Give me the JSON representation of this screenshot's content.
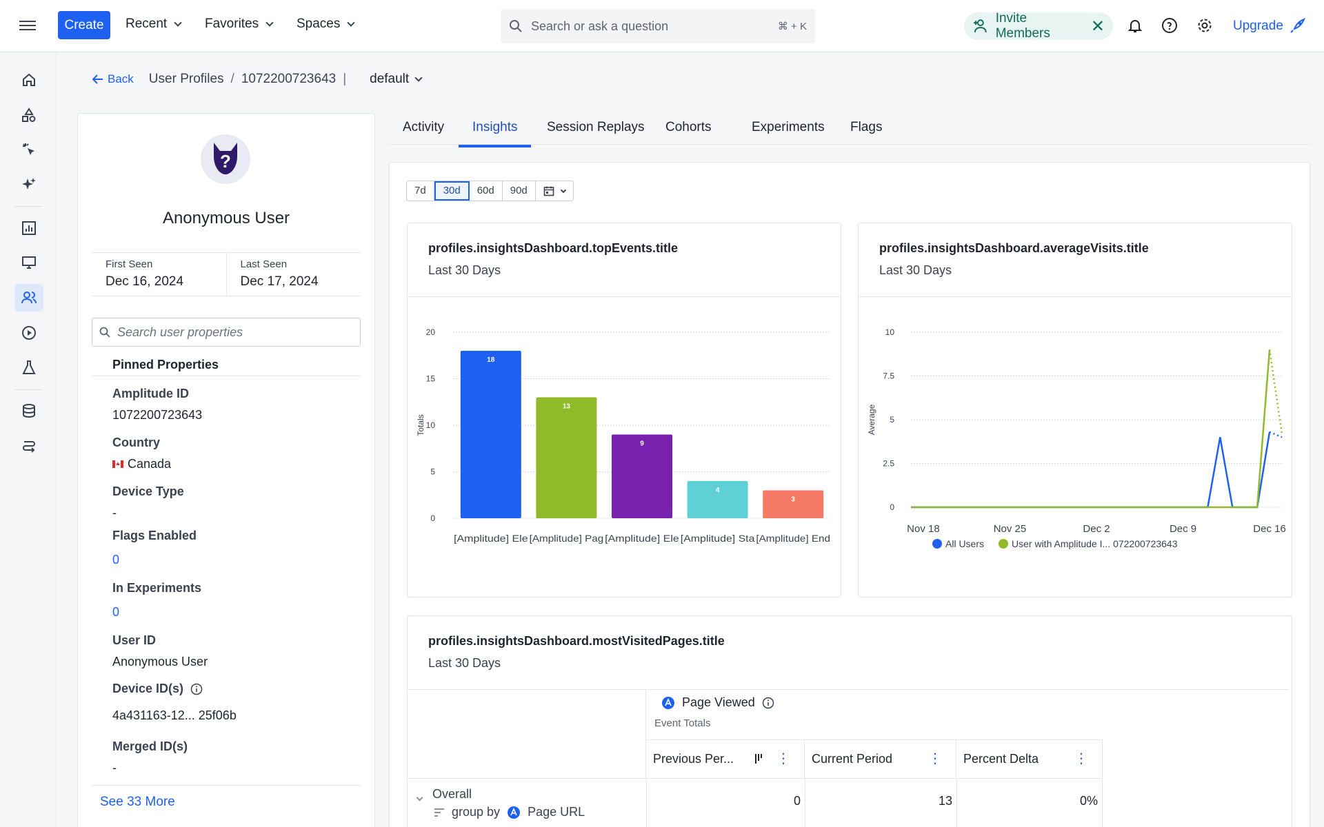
{
  "topbar": {
    "create_label": "Create",
    "menus": [
      "Recent",
      "Favorites",
      "Spaces"
    ],
    "search_placeholder": "Search or ask a question",
    "search_shortcut": "⌘ + K",
    "invite_label": "Invite Members",
    "upgrade_label": "Upgrade"
  },
  "breadcrumb": {
    "back_label": "Back",
    "section": "User Profiles",
    "user_id": "1072200723643",
    "env": "default"
  },
  "profile": {
    "name": "Anonymous User",
    "first_seen_label": "First Seen",
    "first_seen": "Dec 16, 2024",
    "last_seen_label": "Last Seen",
    "last_seen": "Dec 17, 2024",
    "search_placeholder": "Search user properties",
    "pinned_label": "Pinned Properties",
    "properties": [
      {
        "key": "Amplitude ID",
        "value": "1072200723643"
      },
      {
        "key": "Country",
        "value": "Canada"
      },
      {
        "key": "Device Type",
        "value": "-"
      },
      {
        "key": "Flags Enabled",
        "value": "0"
      },
      {
        "key": "In Experiments",
        "value": "0"
      },
      {
        "key": "User ID",
        "value": "Anonymous User"
      },
      {
        "key": "Device ID(s)",
        "value": "4a431163-12... 25f06b"
      },
      {
        "key": "Merged ID(s)",
        "value": "-"
      }
    ],
    "see_more": "See 33 More"
  },
  "tabs": [
    "Activity",
    "Insights",
    "Session Replays",
    "Cohorts",
    "Experiments",
    "Flags"
  ],
  "active_tab": "Insights",
  "range_options": [
    "7d",
    "30d",
    "60d",
    "90d"
  ],
  "range_selected": "30d",
  "cards": {
    "top_events": {
      "title": "profiles.insightsDashboard.topEvents.title",
      "subtitle": "Last 30 Days"
    },
    "average_visits": {
      "title": "profiles.insightsDashboard.averageVisits.title",
      "subtitle": "Last 30 Days"
    },
    "most_visited": {
      "title": "profiles.insightsDashboard.mostVisitedPages.title",
      "subtitle": "Last 30 Days"
    }
  },
  "chart_data": [
    {
      "type": "bar",
      "ylabel": "Totals",
      "ylim": [
        0,
        20
      ],
      "yticks": [
        0,
        5,
        10,
        15,
        20
      ],
      "categories": [
        "[Amplitude] Ele",
        "[Amplitude] Pag",
        "[Amplitude] Ele",
        "[Amplitude] Sta",
        "[Amplitude] End"
      ],
      "values": [
        18,
        13,
        9,
        4,
        3
      ],
      "colors": [
        "#1e61f0",
        "#8fbb2b",
        "#7a22b0",
        "#5fd0d6",
        "#f57a66"
      ],
      "grid": true
    },
    {
      "type": "line",
      "ylabel": "Average",
      "ylim": [
        0,
        10
      ],
      "yticks": [
        "0",
        "2.5",
        "5",
        "7.5",
        "10"
      ],
      "xticks": [
        "Nov 18",
        "Nov 25",
        "Dec 2",
        "Dec 9",
        "Dec 16"
      ],
      "x": [
        "Nov 17",
        "Nov 18",
        "Nov 19",
        "Nov 20",
        "Nov 21",
        "Nov 22",
        "Nov 23",
        "Nov 24",
        "Nov 25",
        "Nov 26",
        "Nov 27",
        "Nov 28",
        "Nov 29",
        "Nov 30",
        "Dec 1",
        "Dec 2",
        "Dec 3",
        "Dec 4",
        "Dec 5",
        "Dec 6",
        "Dec 7",
        "Dec 8",
        "Dec 9",
        "Dec 10",
        "Dec 11",
        "Dec 12",
        "Dec 13",
        "Dec 14",
        "Dec 15",
        "Dec 16",
        "Dec 17"
      ],
      "series": [
        {
          "name": "All Users",
          "color": "#1e61f0",
          "values": [
            0,
            0,
            0,
            0,
            0,
            0,
            0,
            0,
            0,
            0,
            0,
            0,
            0,
            0,
            0,
            0,
            0,
            0,
            0,
            0,
            0,
            0,
            0,
            0,
            0,
            4,
            0,
            0,
            0,
            4.3,
            4
          ]
        },
        {
          "name": "User with Amplitude I... 072200723643",
          "color": "#8fbb2b",
          "values": [
            0,
            0,
            0,
            0,
            0,
            0,
            0,
            0,
            0,
            0,
            0,
            0,
            0,
            0,
            0,
            0,
            0,
            0,
            0,
            0,
            0,
            0,
            0,
            0,
            0,
            0,
            0,
            0,
            0,
            9,
            4.2
          ]
        }
      ],
      "legend": "bottom",
      "grid": true
    }
  ],
  "table": {
    "event_name": "Page Viewed",
    "event_sub": "Event Totals",
    "columns": [
      "Previous Per...",
      "Current Period",
      "Percent Delta"
    ],
    "row_label": "Overall",
    "group_by_label": "group by",
    "group_by_value": "Page URL",
    "row_values": [
      "0",
      "13",
      "0%"
    ]
  }
}
